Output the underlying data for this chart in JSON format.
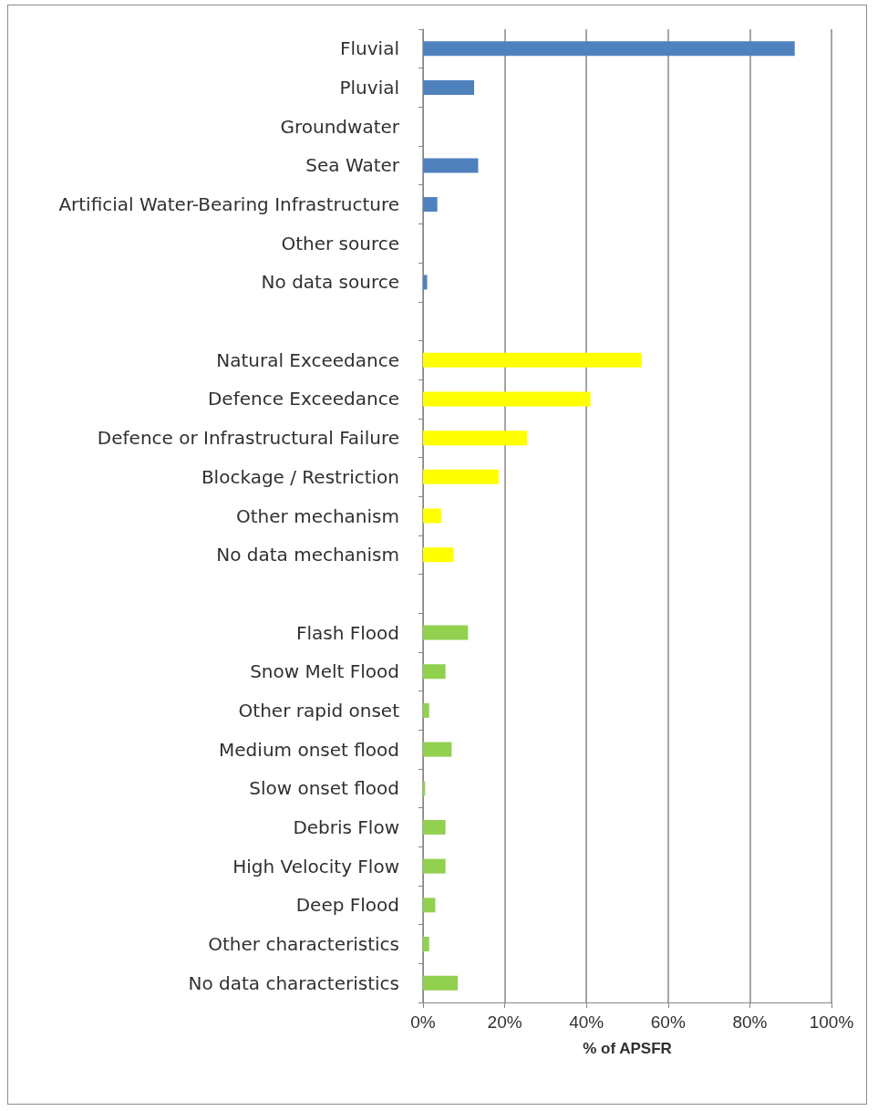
{
  "chart_data": {
    "type": "bar",
    "orientation": "horizontal",
    "categories": [
      "Fluvial",
      "Pluvial",
      "Groundwater",
      "Sea Water",
      "Artificial Water-Bearing Infrastructure",
      "Other source",
      "No data source",
      null,
      "Natural Exceedance",
      "Defence Exceedance",
      "Defence or Infrastructural Failure",
      "Blockage / Restriction",
      "Other mechanism",
      "No data mechanism",
      null,
      "Flash Flood",
      "Snow Melt Flood",
      "Other rapid onset",
      "Medium onset flood",
      "Slow onset flood",
      "Debris Flow",
      "High Velocity Flow",
      "Deep Flood",
      "Other characteristics",
      "No data characteristics"
    ],
    "values": [
      91,
      12.5,
      0,
      13.5,
      3.5,
      0,
      1,
      null,
      53.5,
      41,
      25.5,
      18.5,
      4.5,
      7.5,
      null,
      11,
      5.5,
      1.5,
      7,
      0.5,
      5.5,
      5.5,
      3,
      1.5,
      8.5
    ],
    "colors": [
      "#4f81bd",
      "#4f81bd",
      "#4f81bd",
      "#4f81bd",
      "#4f81bd",
      "#4f81bd",
      "#4f81bd",
      null,
      "#ffff00",
      "#ffff00",
      "#ffff00",
      "#ffff00",
      "#ffff00",
      "#ffff00",
      null,
      "#92d050",
      "#92d050",
      "#92d050",
      "#92d050",
      "#92d050",
      "#92d050",
      "#92d050",
      "#92d050",
      "#92d050",
      "#92d050"
    ],
    "xlabel": "% of APSFR",
    "xlim": [
      0,
      100
    ],
    "xticks": [
      {
        "value": 0,
        "label": "0%"
      },
      {
        "value": 20,
        "label": "20%"
      },
      {
        "value": 40,
        "label": "40%"
      },
      {
        "value": 60,
        "label": "60%"
      },
      {
        "value": 80,
        "label": "80%"
      },
      {
        "value": 100,
        "label": "100%"
      }
    ],
    "grid": "x"
  }
}
